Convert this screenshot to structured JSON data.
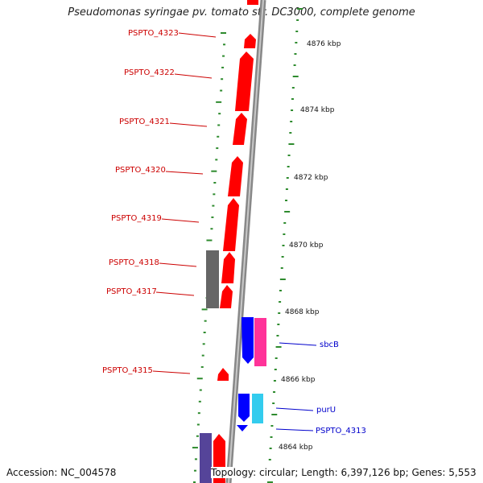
{
  "title": "Pseudomonas syringae pv. tomato str. DC3000, complete genome",
  "accession": "Accession: NC_004578",
  "topology": "Topology: circular; Length: 6,397,126 bp; Genes: 5,553",
  "colors": {
    "forward_gene": "#ff0000",
    "reverse_gene": "#0000ff",
    "pink_gene": "#ff3399",
    "cyan_gene": "#33ccee",
    "gray_gene": "#666666",
    "purple_gene": "#554499",
    "backbone": "#999999",
    "tick": "#2e8b2e",
    "red_label": "#cc0000",
    "blue_label": "#0000cc"
  },
  "scale_labels": [
    "4876 kbp",
    "4874 kbp",
    "4872 kbp",
    "4870 kbp",
    "4868 kbp",
    "4866 kbp",
    "4864 kbp"
  ],
  "gene_labels_left": [
    "PSPTO_4323",
    "PSPTO_4322",
    "PSPTO_4321",
    "PSPTO_4320",
    "PSPTO_4319",
    "PSPTO_4318",
    "PSPTO_4317",
    "PSPTO_4315"
  ],
  "gene_labels_right": [
    "sbcB",
    "purU",
    "PSPTO_4313"
  ]
}
